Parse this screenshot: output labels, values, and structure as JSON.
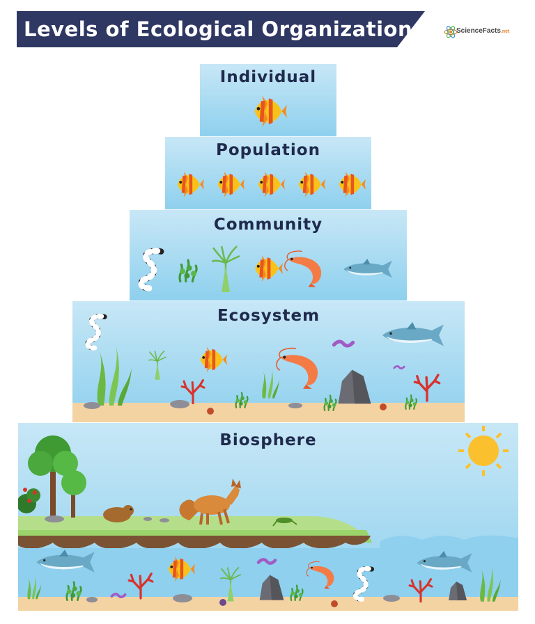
{
  "title": "Levels of Ecological Organization",
  "logo": {
    "name": "ScienceFacts",
    "suffix": ".net"
  },
  "levels": [
    {
      "label": "Individual"
    },
    {
      "label": "Population"
    },
    {
      "label": "Community"
    },
    {
      "label": "Ecosystem"
    },
    {
      "label": "Biosphere"
    }
  ],
  "colors": {
    "banner": "#2f3763",
    "label": "#1f2a4d",
    "water_top": "#c7e7f6",
    "water_bottom": "#8ed0ee",
    "sand": "#f4d3a3",
    "soil": "#7a5234",
    "grass": "#9bd46a"
  },
  "icons": [
    "angelfish-icon",
    "sea-snake-icon",
    "seaweed-icon",
    "shrimp-icon",
    "shark-icon",
    "worm-icon",
    "coral-icon",
    "rock-icon",
    "tree-icon",
    "fox-icon",
    "gopher-icon",
    "sun-icon",
    "atom-logo-icon"
  ]
}
